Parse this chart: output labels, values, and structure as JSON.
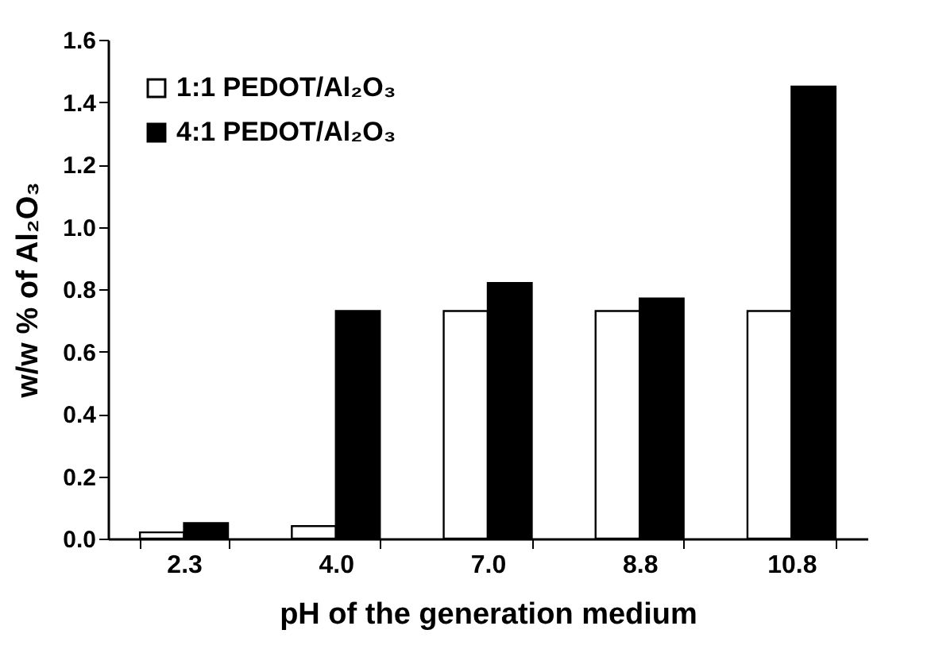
{
  "chart_data": {
    "type": "bar",
    "xlabel": "pH of the generation medium",
    "ylabel": "w/w % of Al₂O₃",
    "categories": [
      "2.3",
      "4.0",
      "7.0",
      "8.8",
      "10.8"
    ],
    "series": [
      {
        "name": "1:1 PEDOT/Al₂O₃",
        "color": "#ffffff",
        "values": [
          0.02,
          0.04,
          0.73,
          0.73,
          0.73
        ]
      },
      {
        "name": "4:1 PEDOT/Al₂O₃",
        "color": "#000000",
        "values": [
          0.05,
          0.73,
          0.82,
          0.77,
          1.45
        ]
      }
    ],
    "ylim": [
      0,
      1.6
    ],
    "yticks": [
      {
        "value": 0,
        "label": "0.0"
      },
      0.2,
      0.4,
      0.6,
      0.8,
      {
        "value": 1,
        "label": "1.0"
      },
      1.2,
      1.4,
      1.6
    ],
    "grid": false,
    "legend": "top left"
  }
}
